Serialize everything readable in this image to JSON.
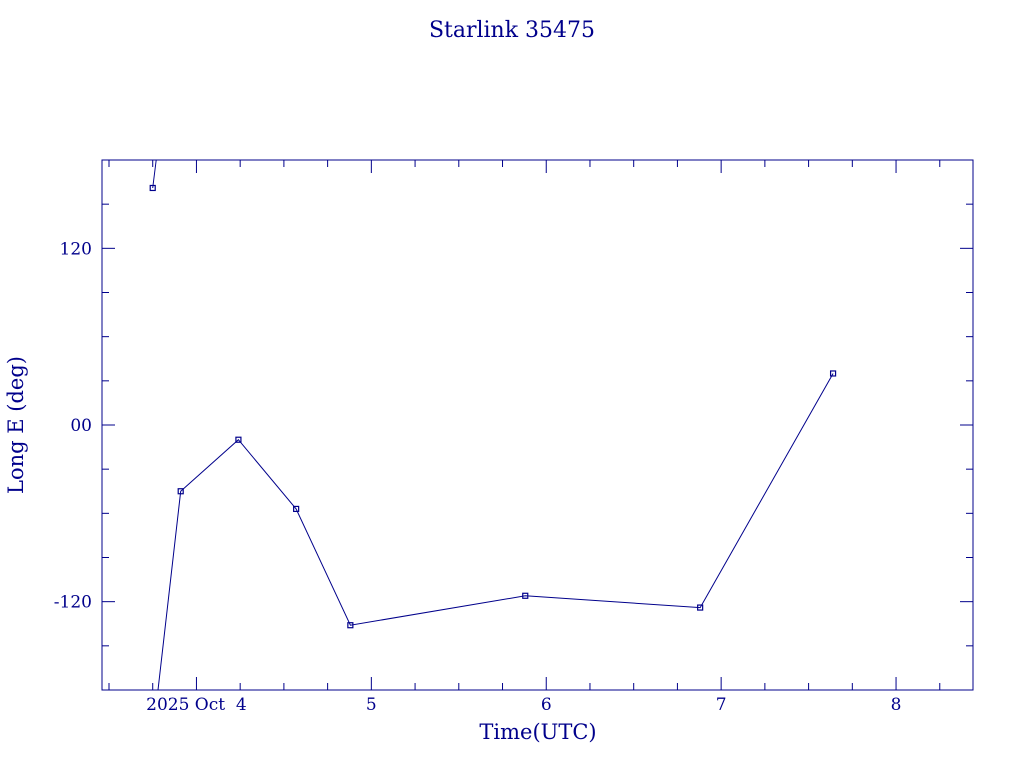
{
  "chart_data": {
    "type": "line",
    "title": "Starlink 35475",
    "xlabel": "Time(UTC)",
    "ylabel": "Long E (deg)",
    "x_tick_labels": [
      {
        "value": 4.0,
        "label": "2025 Oct  4"
      },
      {
        "value": 5.0,
        "label": "5"
      },
      {
        "value": 6.0,
        "label": "6"
      },
      {
        "value": 7.0,
        "label": "7"
      },
      {
        "value": 8.0,
        "label": "8"
      }
    ],
    "y_tick_labels": [
      {
        "value": 120,
        "label": "120"
      },
      {
        "value": 0,
        "label": "00"
      },
      {
        "value": -120,
        "label": "-120"
      }
    ],
    "xlim": [
      3.46,
      8.44
    ],
    "ylim": [
      -180,
      180
    ],
    "x_minor_step": 0.25,
    "y_minor_step": 30,
    "color": "#00008b",
    "grid": false,
    "legend": "none",
    "x_unit": "days of October 2025",
    "segments": [
      [
        {
          "x": 3.77,
          "y": 180
        },
        {
          "x": 3.75,
          "y": 161
        }
      ],
      [
        {
          "x": 3.78,
          "y": -180
        },
        {
          "x": 3.91,
          "y": -45
        },
        {
          "x": 4.24,
          "y": -10
        },
        {
          "x": 4.57,
          "y": -57
        },
        {
          "x": 4.88,
          "y": -136
        },
        {
          "x": 5.88,
          "y": -116
        },
        {
          "x": 6.88,
          "y": -124
        },
        {
          "x": 7.64,
          "y": 35
        }
      ]
    ],
    "markers": [
      {
        "x": 3.75,
        "y": 161
      },
      {
        "x": 3.91,
        "y": -45
      },
      {
        "x": 4.24,
        "y": -10
      },
      {
        "x": 4.57,
        "y": -57
      },
      {
        "x": 4.88,
        "y": -136
      },
      {
        "x": 5.88,
        "y": -116
      },
      {
        "x": 6.88,
        "y": -124
      },
      {
        "x": 7.64,
        "y": 35
      }
    ]
  }
}
